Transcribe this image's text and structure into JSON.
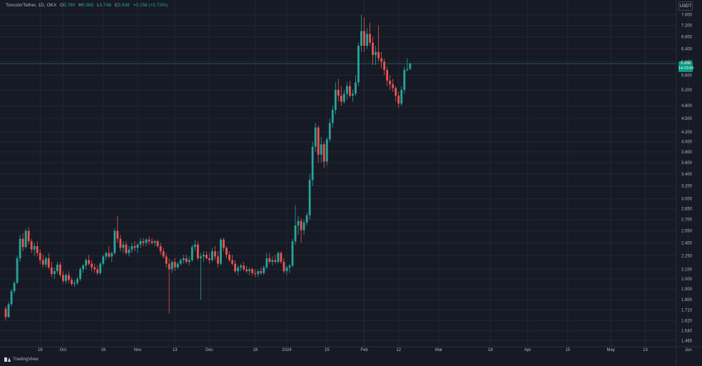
{
  "legend": {
    "symbol": "Toncoin/Tether, 1D, OKX",
    "o_label": "O",
    "o": "5.780",
    "h_label": "H",
    "h": "5.965",
    "l_label": "L",
    "l": "5.748",
    "c_label": "C",
    "c": "5.938",
    "change": "+0.158 (+2.73%)"
  },
  "currency": "USDT",
  "last_price": {
    "price": "5.938",
    "countdown": "14:23:50"
  },
  "brand": "TradingView",
  "colors": {
    "background": "#161a25",
    "grid": "#232733",
    "up": "#26a69a",
    "down": "#ef5350",
    "text": "#b2b5be"
  },
  "chart_data": {
    "type": "candlestick",
    "title": "Toncoin/Tether, 1D, OKX",
    "scale": "log",
    "ylim": [
      1.43,
      7.9
    ],
    "last_price": 5.938,
    "y_ticks": [
      "7.600",
      "7.200",
      "6.800",
      "6.400",
      "6.000",
      "5.600",
      "5.200",
      "4.800",
      "4.500",
      "4.200",
      "4.000",
      "3.800",
      "3.600",
      "3.400",
      "3.200",
      "3.000",
      "2.850",
      "2.700",
      "2.550",
      "2.400",
      "2.250",
      "2.100",
      "2.000",
      "1.900",
      "1.800",
      "1.710",
      "1.620",
      "1.540",
      "1.465"
    ],
    "x_ticks": [
      {
        "label": "18",
        "x": 12
      },
      {
        "label": "Oct",
        "x": 20
      },
      {
        "label": "16",
        "x": 34
      },
      {
        "label": "Nov",
        "x": 46
      },
      {
        "label": "13",
        "x": 59
      },
      {
        "label": "Dec",
        "x": 71
      },
      {
        "label": "18",
        "x": 87
      },
      {
        "label": "2024",
        "x": 98
      },
      {
        "label": "15",
        "x": 112
      },
      {
        "label": "Feb",
        "x": 125
      },
      {
        "label": "12",
        "x": 137
      },
      {
        "label": "Mar",
        "x": 151
      },
      {
        "label": "18",
        "x": 169
      },
      {
        "label": "Apr",
        "x": 182
      },
      {
        "label": "15",
        "x": 196
      },
      {
        "label": "May",
        "x": 211
      },
      {
        "label": "13",
        "x": 223
      },
      {
        "label": "Jun",
        "x": 238
      }
    ],
    "candles": [
      [
        1.72,
        1.74,
        1.62,
        1.65
      ],
      [
        1.65,
        1.78,
        1.64,
        1.76
      ],
      [
        1.76,
        1.9,
        1.74,
        1.88
      ],
      [
        1.88,
        1.98,
        1.86,
        1.96
      ],
      [
        1.96,
        2.25,
        1.95,
        2.22
      ],
      [
        2.22,
        2.5,
        2.18,
        2.45
      ],
      [
        2.45,
        2.52,
        2.3,
        2.35
      ],
      [
        2.35,
        2.58,
        2.33,
        2.55
      ],
      [
        2.55,
        2.6,
        2.38,
        2.42
      ],
      [
        2.42,
        2.45,
        2.28,
        2.32
      ],
      [
        2.32,
        2.4,
        2.25,
        2.36
      ],
      [
        2.36,
        2.42,
        2.24,
        2.28
      ],
      [
        2.28,
        2.32,
        2.16,
        2.2
      ],
      [
        2.2,
        2.26,
        2.12,
        2.15
      ],
      [
        2.15,
        2.24,
        2.12,
        2.22
      ],
      [
        2.22,
        2.28,
        2.1,
        2.12
      ],
      [
        2.12,
        2.18,
        2.02,
        2.05
      ],
      [
        2.05,
        2.12,
        2.0,
        2.08
      ],
      [
        2.08,
        2.18,
        2.05,
        2.15
      ],
      [
        2.15,
        2.18,
        2.02,
        2.04
      ],
      [
        2.04,
        2.08,
        1.96,
        1.98
      ],
      [
        1.98,
        2.06,
        1.95,
        2.04
      ],
      [
        2.04,
        2.08,
        1.96,
        1.99
      ],
      [
        1.99,
        2.02,
        1.93,
        1.95
      ],
      [
        1.95,
        1.99,
        1.92,
        1.96
      ],
      [
        1.96,
        2.02,
        1.94,
        2.0
      ],
      [
        2.0,
        2.12,
        1.98,
        2.1
      ],
      [
        2.1,
        2.16,
        2.06,
        2.14
      ],
      [
        2.14,
        2.22,
        2.1,
        2.2
      ],
      [
        2.2,
        2.26,
        2.14,
        2.16
      ],
      [
        2.16,
        2.2,
        2.08,
        2.12
      ],
      [
        2.12,
        2.16,
        2.06,
        2.1
      ],
      [
        2.1,
        2.14,
        2.04,
        2.06
      ],
      [
        2.06,
        2.18,
        2.04,
        2.16
      ],
      [
        2.16,
        2.26,
        2.14,
        2.24
      ],
      [
        2.24,
        2.3,
        2.2,
        2.28
      ],
      [
        2.28,
        2.36,
        2.22,
        2.24
      ],
      [
        2.24,
        2.3,
        2.18,
        2.28
      ],
      [
        2.28,
        2.58,
        2.26,
        2.55
      ],
      [
        2.55,
        2.75,
        2.4,
        2.45
      ],
      [
        2.45,
        2.5,
        2.3,
        2.34
      ],
      [
        2.34,
        2.42,
        2.28,
        2.38
      ],
      [
        2.38,
        2.42,
        2.26,
        2.28
      ],
      [
        2.28,
        2.36,
        2.24,
        2.32
      ],
      [
        2.32,
        2.4,
        2.28,
        2.36
      ],
      [
        2.36,
        2.42,
        2.3,
        2.34
      ],
      [
        2.34,
        2.4,
        2.28,
        2.38
      ],
      [
        2.38,
        2.46,
        2.34,
        2.42
      ],
      [
        2.42,
        2.46,
        2.36,
        2.4
      ],
      [
        2.4,
        2.46,
        2.36,
        2.44
      ],
      [
        2.44,
        2.48,
        2.38,
        2.42
      ],
      [
        2.42,
        2.46,
        2.38,
        2.4
      ],
      [
        2.4,
        2.44,
        2.36,
        2.42
      ],
      [
        2.42,
        2.44,
        2.34,
        2.36
      ],
      [
        2.36,
        2.4,
        2.26,
        2.3
      ],
      [
        2.3,
        2.34,
        2.22,
        2.24
      ],
      [
        2.24,
        2.28,
        2.12,
        2.16
      ],
      [
        2.16,
        2.22,
        1.68,
        2.1
      ],
      [
        2.1,
        2.2,
        2.06,
        2.18
      ],
      [
        2.18,
        2.22,
        2.08,
        2.12
      ],
      [
        2.12,
        2.18,
        2.1,
        2.16
      ],
      [
        2.16,
        2.22,
        2.14,
        2.2
      ],
      [
        2.2,
        2.26,
        2.16,
        2.22
      ],
      [
        2.22,
        2.26,
        2.16,
        2.18
      ],
      [
        2.18,
        2.24,
        2.14,
        2.2
      ],
      [
        2.2,
        2.38,
        2.18,
        2.35
      ],
      [
        2.35,
        2.44,
        2.3,
        2.38
      ],
      [
        2.38,
        2.42,
        2.2,
        2.22
      ],
      [
        2.22,
        2.28,
        1.8,
        2.24
      ],
      [
        2.24,
        2.3,
        2.18,
        2.26
      ],
      [
        2.26,
        2.3,
        2.2,
        2.22
      ],
      [
        2.22,
        2.28,
        2.16,
        2.2
      ],
      [
        2.2,
        2.34,
        2.18,
        2.3
      ],
      [
        2.3,
        2.36,
        2.2,
        2.24
      ],
      [
        2.24,
        2.3,
        2.12,
        2.16
      ],
      [
        2.16,
        2.46,
        2.14,
        2.44
      ],
      [
        2.44,
        2.46,
        2.3,
        2.34
      ],
      [
        2.34,
        2.36,
        2.22,
        2.26
      ],
      [
        2.26,
        2.3,
        2.18,
        2.2
      ],
      [
        2.2,
        2.26,
        2.14,
        2.16
      ],
      [
        2.16,
        2.2,
        2.06,
        2.08
      ],
      [
        2.08,
        2.14,
        2.04,
        2.12
      ],
      [
        2.12,
        2.16,
        2.08,
        2.14
      ],
      [
        2.14,
        2.18,
        2.08,
        2.1
      ],
      [
        2.1,
        2.14,
        2.06,
        2.08
      ],
      [
        2.08,
        2.12,
        2.04,
        2.1
      ],
      [
        2.1,
        2.12,
        2.04,
        2.06
      ],
      [
        2.06,
        2.1,
        2.02,
        2.05
      ],
      [
        2.05,
        2.1,
        2.02,
        2.08
      ],
      [
        2.08,
        2.12,
        2.04,
        2.06
      ],
      [
        2.06,
        2.14,
        2.04,
        2.12
      ],
      [
        2.12,
        2.28,
        2.1,
        2.22
      ],
      [
        2.22,
        2.28,
        2.16,
        2.18
      ],
      [
        2.18,
        2.24,
        2.14,
        2.2
      ],
      [
        2.2,
        2.26,
        2.16,
        2.18
      ],
      [
        2.18,
        2.3,
        2.16,
        2.28
      ],
      [
        2.28,
        2.3,
        2.16,
        2.18
      ],
      [
        2.18,
        2.22,
        2.06,
        2.08
      ],
      [
        2.08,
        2.14,
        2.04,
        2.12
      ],
      [
        2.12,
        2.16,
        2.06,
        2.14
      ],
      [
        2.14,
        2.45,
        2.12,
        2.42
      ],
      [
        2.42,
        2.9,
        2.38,
        2.62
      ],
      [
        2.62,
        2.75,
        2.5,
        2.68
      ],
      [
        2.68,
        2.72,
        2.4,
        2.56
      ],
      [
        2.56,
        2.7,
        2.5,
        2.66
      ],
      [
        2.66,
        2.8,
        2.62,
        2.76
      ],
      [
        2.76,
        3.4,
        2.7,
        3.3
      ],
      [
        3.3,
        4.0,
        3.2,
        3.9
      ],
      [
        3.9,
        4.4,
        3.8,
        4.3
      ],
      [
        4.3,
        4.35,
        3.6,
        3.75
      ],
      [
        3.75,
        4.1,
        3.6,
        3.95
      ],
      [
        3.95,
        4.0,
        3.5,
        3.62
      ],
      [
        3.62,
        4.1,
        3.55,
        4.05
      ],
      [
        4.05,
        4.5,
        4.0,
        4.4
      ],
      [
        4.4,
        4.8,
        4.3,
        4.7
      ],
      [
        4.7,
        5.4,
        4.6,
        5.2
      ],
      [
        5.2,
        5.5,
        4.9,
        5.05
      ],
      [
        5.05,
        5.3,
        4.8,
        4.9
      ],
      [
        4.9,
        5.2,
        4.85,
        5.1
      ],
      [
        5.1,
        5.4,
        4.95,
        5.3
      ],
      [
        5.3,
        5.45,
        5.0,
        5.05
      ],
      [
        5.05,
        5.2,
        4.9,
        5.1
      ],
      [
        5.1,
        5.6,
        5.05,
        5.4
      ],
      [
        5.4,
        6.6,
        5.3,
        6.5
      ],
      [
        6.5,
        7.6,
        6.3,
        7.0
      ],
      [
        7.0,
        7.5,
        6.3,
        6.5
      ],
      [
        6.5,
        7.1,
        6.4,
        6.9
      ],
      [
        6.9,
        7.3,
        6.5,
        6.6
      ],
      [
        6.6,
        6.8,
        5.9,
        6.2
      ],
      [
        6.2,
        6.5,
        5.9,
        6.3
      ],
      [
        6.3,
        7.2,
        6.0,
        6.1
      ],
      [
        6.1,
        6.3,
        5.8,
        6.0
      ],
      [
        6.0,
        6.1,
        5.6,
        5.75
      ],
      [
        5.75,
        5.85,
        5.3,
        5.45
      ],
      [
        5.45,
        5.6,
        5.2,
        5.35
      ],
      [
        5.35,
        5.5,
        5.15,
        5.25
      ],
      [
        5.25,
        5.3,
        4.9,
        5.05
      ],
      [
        5.05,
        5.15,
        4.75,
        4.85
      ],
      [
        4.85,
        5.3,
        4.8,
        5.2
      ],
      [
        5.2,
        5.85,
        5.1,
        5.75
      ],
      [
        5.75,
        6.1,
        5.7,
        5.78
      ],
      [
        5.78,
        5.965,
        5.748,
        5.938
      ]
    ]
  }
}
